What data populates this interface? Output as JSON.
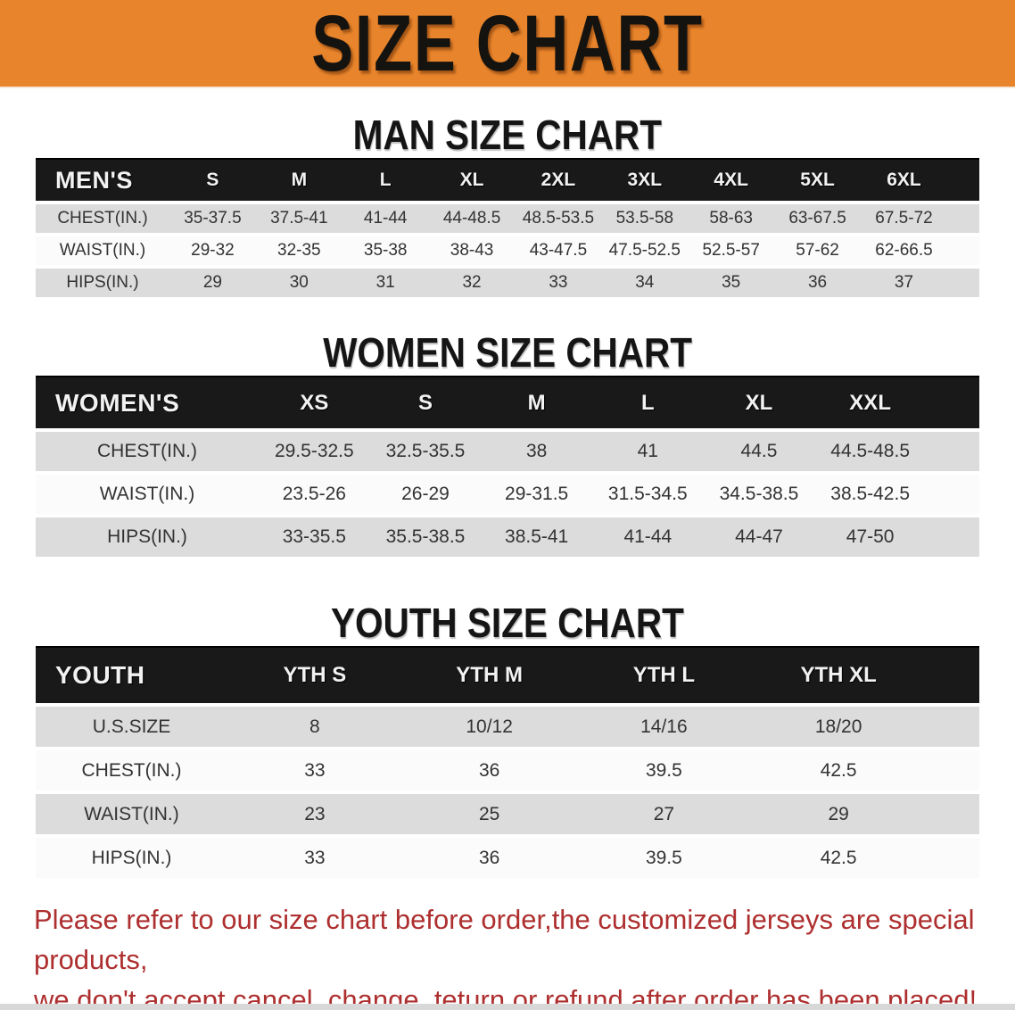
{
  "banner": {
    "title": "SIZE CHART",
    "bg_color": "#E8842B",
    "text_color": "#151310"
  },
  "sections": [
    {
      "heading": "MAN SIZE CHART",
      "table": {
        "header": [
          "MEN'S",
          "S",
          "M",
          "L",
          "XL",
          "2XL",
          "3XL",
          "4XL",
          "5XL",
          "6XL"
        ],
        "rows": [
          [
            "CHEST(IN.)",
            "35-37.5",
            "37.5-41",
            "41-44",
            "44-48.5",
            "48.5-53.5",
            "53.5-58",
            "58-63",
            "63-67.5",
            "67.5-72"
          ],
          [
            "WAIST(IN.)",
            "29-32",
            "32-35",
            "35-38",
            "38-43",
            "43-47.5",
            "47.5-52.5",
            "52.5-57",
            "57-62",
            "62-66.5"
          ],
          [
            "HIPS(IN.)",
            "29",
            "30",
            "31",
            "32",
            "33",
            "34",
            "35",
            "36",
            "37"
          ]
        ]
      }
    },
    {
      "heading": "WOMEN SIZE CHART",
      "table": {
        "header": [
          "WOMEN'S",
          "XS",
          "S",
          "M",
          "L",
          "XL",
          "XXL"
        ],
        "rows": [
          [
            "CHEST(IN.)",
            "29.5-32.5",
            "32.5-35.5",
            "38",
            "41",
            "44.5",
            "44.5-48.5"
          ],
          [
            "WAIST(IN.)",
            "23.5-26",
            "26-29",
            "29-31.5",
            "31.5-34.5",
            "34.5-38.5",
            "38.5-42.5"
          ],
          [
            "HIPS(IN.)",
            "33-35.5",
            "35.5-38.5",
            "38.5-41",
            "41-44",
            "44-47",
            "47-50"
          ]
        ]
      }
    },
    {
      "heading": "YOUTH SIZE CHART",
      "table": {
        "header": [
          "YOUTH",
          "YTH S",
          "YTH M",
          "YTH L",
          "YTH XL"
        ],
        "rows": [
          [
            "U.S.SIZE",
            "8",
            "10/12",
            "14/16",
            "18/20"
          ],
          [
            "CHEST(IN.)",
            "33",
            "36",
            "39.5",
            "42.5"
          ],
          [
            "WAIST(IN.)",
            "23",
            "25",
            "27",
            "29"
          ],
          [
            "HIPS(IN.)",
            "33",
            "36",
            "39.5",
            "42.5"
          ]
        ]
      }
    }
  ],
  "disclaimer": {
    "line1": "Please refer to our size chart before order,the customized jerseys are special products,",
    "line2": "we don't accept cancel, change, teturn or refund after order has been placed!",
    "color": "#AE2F2F"
  },
  "colors": {
    "banner_orange": "#E8842B",
    "table_header_black": "#191919",
    "row_stripe_gray": "#DCDCDC",
    "row_stripe_white": "#FBFBFB",
    "disclaimer_red": "#AE2F2F"
  }
}
